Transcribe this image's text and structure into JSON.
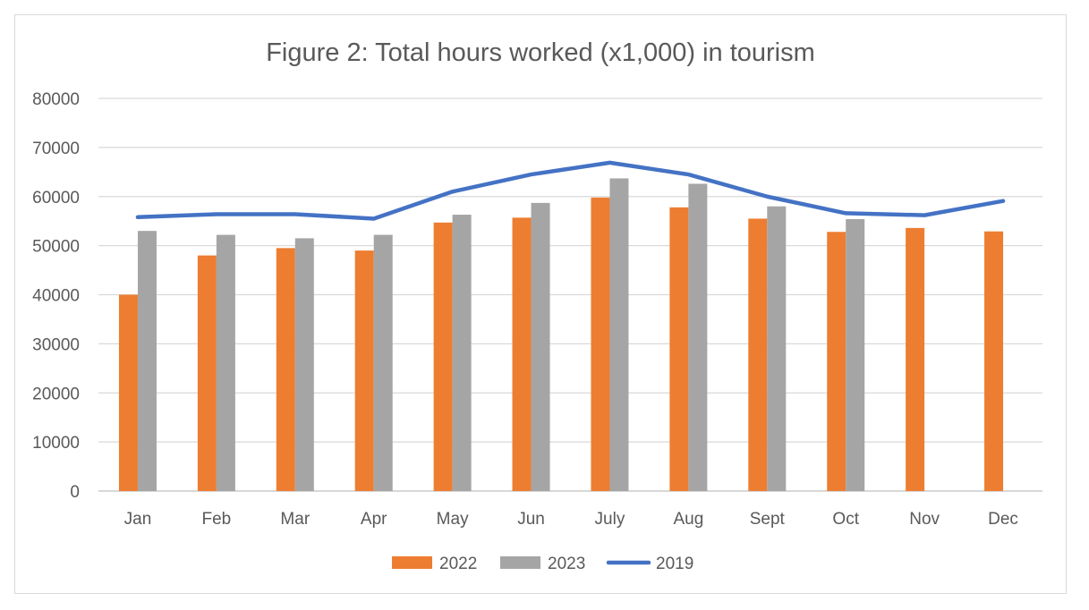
{
  "chart_data": {
    "type": "bar",
    "title": "Figure 2: Total hours worked (x1,000) in tourism",
    "xlabel": "",
    "ylabel": "",
    "categories": [
      "Jan",
      "Feb",
      "Mar",
      "Apr",
      "May",
      "Jun",
      "July",
      "Aug",
      "Sept",
      "Oct",
      "Nov",
      "Dec"
    ],
    "ylim": [
      0,
      80000
    ],
    "yticks": [
      "0",
      "10000",
      "20000",
      "30000",
      "40000",
      "50000",
      "60000",
      "70000",
      "80000"
    ],
    "grid": true,
    "legend_position": "bottom",
    "series": [
      {
        "name": "2022",
        "type": "bar",
        "color": "#ED7D31",
        "values": [
          40000,
          48000,
          49500,
          49000,
          54700,
          55700,
          59800,
          57800,
          55500,
          52800,
          53600,
          52900
        ]
      },
      {
        "name": "2023",
        "type": "bar",
        "color": "#A5A5A5",
        "values": [
          53000,
          52200,
          51500,
          52200,
          56300,
          58700,
          63700,
          62600,
          58000,
          55400,
          null,
          null
        ]
      },
      {
        "name": "2019",
        "type": "line",
        "color": "#4472C4",
        "values": [
          55800,
          56400,
          56400,
          55500,
          61000,
          64500,
          66900,
          64500,
          60000,
          56600,
          56200,
          59100
        ]
      }
    ]
  }
}
